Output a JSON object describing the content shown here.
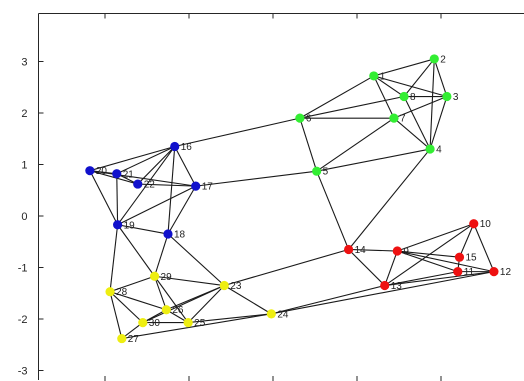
{
  "chart_data": {
    "type": "graph",
    "title": "",
    "xlabel": "",
    "ylabel": "",
    "ylim": [
      -3.1,
      3.9
    ],
    "yticks": [
      3,
      2,
      1,
      0,
      -1,
      -2,
      -3
    ],
    "ytick_labels": [
      "3",
      "2",
      "1",
      "0",
      "-1",
      "-2",
      "-3"
    ],
    "xlim": [
      -2.5,
      3.8
    ],
    "xticks": [
      -2,
      -1,
      0,
      1,
      2,
      3
    ],
    "grid": false,
    "colors": {
      "green": "#33ee33",
      "red": "#ee1111",
      "blue": "#1111cc",
      "yellow": "#eeee11"
    },
    "nodes": [
      {
        "id": "1",
        "x": 1.2,
        "y": 2.72,
        "color": "green"
      },
      {
        "id": "2",
        "x": 1.92,
        "y": 3.05,
        "color": "green"
      },
      {
        "id": "3",
        "x": 2.07,
        "y": 2.32,
        "color": "green"
      },
      {
        "id": "4",
        "x": 1.87,
        "y": 1.3,
        "color": "green"
      },
      {
        "id": "5",
        "x": 0.52,
        "y": 0.87,
        "color": "green"
      },
      {
        "id": "6",
        "x": 0.32,
        "y": 1.9,
        "color": "green"
      },
      {
        "id": "7",
        "x": 1.44,
        "y": 1.9,
        "color": "green"
      },
      {
        "id": "8",
        "x": 1.56,
        "y": 2.32,
        "color": "green"
      },
      {
        "id": "9",
        "x": 1.48,
        "y": -0.68,
        "color": "red"
      },
      {
        "id": "10",
        "x": 2.39,
        "y": -0.15,
        "color": "red"
      },
      {
        "id": "11",
        "x": 2.2,
        "y": -1.08,
        "color": "red"
      },
      {
        "id": "12",
        "x": 2.63,
        "y": -1.08,
        "color": "red"
      },
      {
        "id": "13",
        "x": 1.33,
        "y": -1.35,
        "color": "red"
      },
      {
        "id": "14",
        "x": 0.9,
        "y": -0.65,
        "color": "red"
      },
      {
        "id": "15",
        "x": 2.22,
        "y": -0.8,
        "color": "red"
      },
      {
        "id": "16",
        "x": -1.17,
        "y": 1.35,
        "color": "blue"
      },
      {
        "id": "17",
        "x": -0.92,
        "y": 0.58,
        "color": "blue"
      },
      {
        "id": "18",
        "x": -1.25,
        "y": -0.35,
        "color": "blue"
      },
      {
        "id": "19",
        "x": -1.85,
        "y": -0.17,
        "color": "blue"
      },
      {
        "id": "20",
        "x": -2.18,
        "y": 0.88,
        "color": "blue"
      },
      {
        "id": "21",
        "x": -1.86,
        "y": 0.82,
        "color": "blue"
      },
      {
        "id": "22",
        "x": -1.61,
        "y": 0.62,
        "color": "blue"
      },
      {
        "id": "23",
        "x": -0.58,
        "y": -1.35,
        "color": "yellow"
      },
      {
        "id": "24",
        "x": -0.02,
        "y": -1.9,
        "color": "yellow"
      },
      {
        "id": "25",
        "x": -1.01,
        "y": -2.07,
        "color": "yellow"
      },
      {
        "id": "26",
        "x": -1.27,
        "y": -1.82,
        "color": "yellow"
      },
      {
        "id": "27",
        "x": -1.8,
        "y": -2.38,
        "color": "yellow"
      },
      {
        "id": "28",
        "x": -1.94,
        "y": -1.47,
        "color": "yellow"
      },
      {
        "id": "29",
        "x": -1.41,
        "y": -1.17,
        "color": "yellow"
      },
      {
        "id": "30",
        "x": -1.55,
        "y": -2.07,
        "color": "yellow"
      }
    ],
    "edges": [
      [
        "1",
        "2"
      ],
      [
        "1",
        "3"
      ],
      [
        "1",
        "6"
      ],
      [
        "1",
        "7"
      ],
      [
        "1",
        "8"
      ],
      [
        "2",
        "8"
      ],
      [
        "2",
        "3"
      ],
      [
        "2",
        "4"
      ],
      [
        "3",
        "7"
      ],
      [
        "3",
        "8"
      ],
      [
        "3",
        "4"
      ],
      [
        "4",
        "5"
      ],
      [
        "4",
        "7"
      ],
      [
        "4",
        "8"
      ],
      [
        "5",
        "6"
      ],
      [
        "5",
        "7"
      ],
      [
        "6",
        "7"
      ],
      [
        "6",
        "8"
      ],
      [
        "6",
        "16"
      ],
      [
        "5",
        "17"
      ],
      [
        "4",
        "14"
      ],
      [
        "5",
        "14"
      ],
      [
        "9",
        "10"
      ],
      [
        "9",
        "11"
      ],
      [
        "9",
        "13"
      ],
      [
        "9",
        "14"
      ],
      [
        "9",
        "15"
      ],
      [
        "9",
        "12"
      ],
      [
        "10",
        "12"
      ],
      [
        "10",
        "15"
      ],
      [
        "10",
        "13"
      ],
      [
        "11",
        "12"
      ],
      [
        "11",
        "13"
      ],
      [
        "11",
        "15"
      ],
      [
        "12",
        "13"
      ],
      [
        "12",
        "24"
      ],
      [
        "13",
        "14"
      ],
      [
        "13",
        "24"
      ],
      [
        "14",
        "23"
      ],
      [
        "16",
        "17"
      ],
      [
        "16",
        "18"
      ],
      [
        "16",
        "19"
      ],
      [
        "16",
        "20"
      ],
      [
        "16",
        "21"
      ],
      [
        "16",
        "22"
      ],
      [
        "17",
        "18"
      ],
      [
        "17",
        "19"
      ],
      [
        "17",
        "20"
      ],
      [
        "17",
        "22"
      ],
      [
        "18",
        "19"
      ],
      [
        "18",
        "23"
      ],
      [
        "18",
        "29"
      ],
      [
        "19",
        "20"
      ],
      [
        "19",
        "21"
      ],
      [
        "19",
        "28"
      ],
      [
        "19",
        "29"
      ],
      [
        "20",
        "21"
      ],
      [
        "20",
        "22"
      ],
      [
        "21",
        "22"
      ],
      [
        "23",
        "24"
      ],
      [
        "23",
        "25"
      ],
      [
        "23",
        "26"
      ],
      [
        "23",
        "29"
      ],
      [
        "23",
        "30"
      ],
      [
        "24",
        "25"
      ],
      [
        "24",
        "27"
      ],
      [
        "25",
        "26"
      ],
      [
        "25",
        "30"
      ],
      [
        "25",
        "29"
      ],
      [
        "26",
        "28"
      ],
      [
        "26",
        "29"
      ],
      [
        "26",
        "30"
      ],
      [
        "27",
        "28"
      ],
      [
        "27",
        "30"
      ],
      [
        "28",
        "29"
      ],
      [
        "28",
        "30"
      ]
    ]
  }
}
